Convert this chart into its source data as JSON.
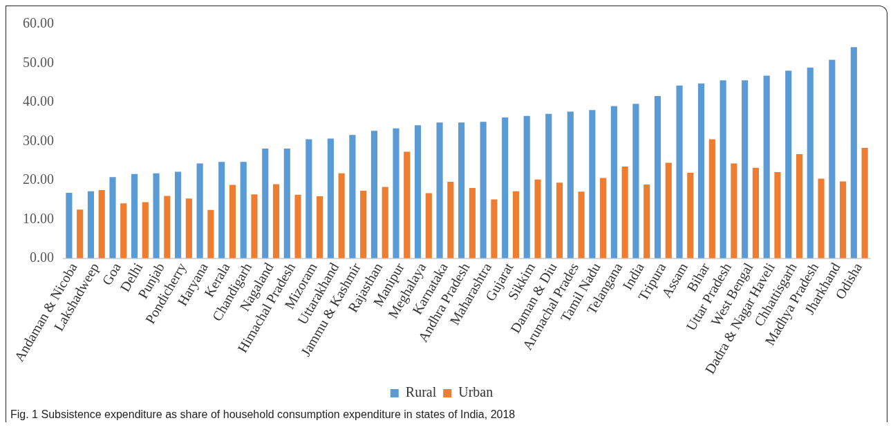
{
  "chart_data": {
    "type": "bar",
    "categories": [
      "Andaman & Nicoba",
      "Lakshadweep",
      "Goa",
      "Delhi",
      "Punjab",
      "Pondicherry",
      "Haryana",
      "Kerala",
      "Chandigarh",
      "Nagaland",
      "Himachal Pradesh",
      "Mizoram",
      "Uttarakhand",
      "Jammu & Kashmir",
      "Rajasthan",
      "Manipur",
      "Meghalaya",
      "Karnataka",
      "Andhra Pradesh",
      "Maharashtra",
      "Gujarat",
      "Sikkim",
      "Daman & Diu",
      "Arunachal Prades",
      "Tamil Nadu",
      "Telangana",
      "India",
      "Tripura",
      "Assam",
      "Bihar",
      "Uttar Pradesh",
      "West Bengal",
      "Dadra & Nagar Haveli",
      "Chhattisgarh",
      "Madhya Pradesh",
      "Jharkhand",
      "Odisha"
    ],
    "series": [
      {
        "name": "Rural",
        "color": "#5b9bd5",
        "values": [
          16.8,
          17.2,
          20.8,
          21.6,
          21.8,
          22.2,
          24.3,
          24.7,
          24.7,
          28.1,
          28.1,
          30.5,
          30.7,
          31.6,
          32.7,
          33.3,
          34.1,
          34.8,
          34.8,
          35.0,
          36.1,
          36.5,
          37.0,
          37.6,
          38.0,
          39.0,
          39.6,
          41.6,
          44.3,
          44.8,
          45.6,
          45.6,
          46.8,
          48.1,
          48.9,
          50.9,
          54.1
        ]
      },
      {
        "name": "Urban",
        "color": "#ed7d31",
        "values": [
          12.5,
          17.5,
          14.1,
          14.4,
          16.0,
          15.3,
          12.4,
          18.8,
          16.4,
          19.0,
          16.3,
          15.9,
          21.8,
          17.3,
          18.3,
          27.3,
          16.7,
          19.6,
          18.0,
          15.1,
          17.2,
          20.2,
          19.4,
          17.1,
          20.6,
          23.5,
          18.9,
          24.5,
          21.9,
          30.5,
          24.3,
          23.2,
          22.1,
          26.7,
          20.4,
          19.7,
          28.3
        ]
      }
    ],
    "ylim": [
      0,
      60
    ],
    "yticks": [
      {
        "value": 0,
        "label": "0.00"
      },
      {
        "value": 10,
        "label": "10.00"
      },
      {
        "value": 20,
        "label": "20.00"
      },
      {
        "value": 30,
        "label": "30.00"
      },
      {
        "value": 40,
        "label": "40.00"
      },
      {
        "value": 50,
        "label": "50.00"
      },
      {
        "value": 60,
        "label": "60.00"
      }
    ],
    "legend": "bottom",
    "annotations": [
      "Fig. 1 Subsistence expenditure as share of household consumption expenditure in states of India, 2018"
    ]
  }
}
